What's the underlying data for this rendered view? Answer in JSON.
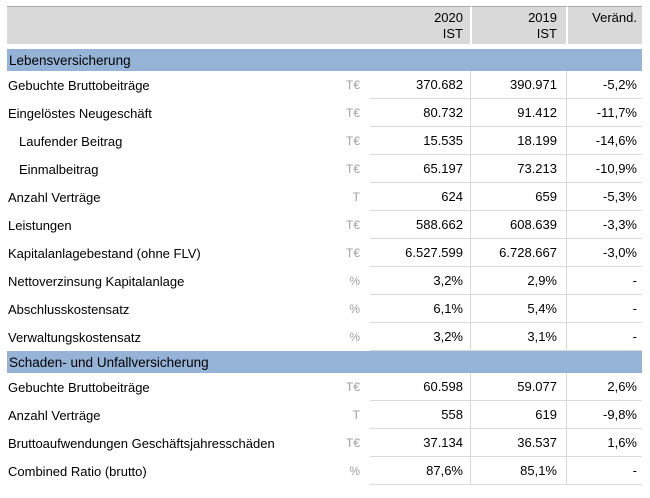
{
  "table": {
    "header": {
      "col_2020_line1": "2020",
      "col_2020_line2": "IST",
      "col_2019_line1": "2019",
      "col_2019_line2": "IST",
      "col_change": "Veränd."
    },
    "sections": [
      {
        "title": "Lebensversicherung",
        "rows": [
          {
            "label": "Gebuchte Bruttobeiträge",
            "unit": "T€",
            "v2020": "370.682",
            "v2019": "390.971",
            "change": "-5,2%"
          },
          {
            "label": "Eingelöstes Neugeschäft",
            "unit": "T€",
            "v2020": "80.732",
            "v2019": "91.412",
            "change": "-11,7%"
          },
          {
            "label": "Laufender Beitrag",
            "unit": "T€",
            "v2020": "15.535",
            "v2019": "18.199",
            "change": "-14,6%"
          },
          {
            "label": "Einmalbeitrag",
            "unit": "T€",
            "v2020": "65.197",
            "v2019": "73.213",
            "change": "-10,9%"
          },
          {
            "label": "Anzahl Verträge",
            "unit": "T",
            "v2020": "624",
            "v2019": "659",
            "change": "-5,3%"
          },
          {
            "label": "Leistungen",
            "unit": "T€",
            "v2020": "588.662",
            "v2019": "608.639",
            "change": "-3,3%"
          },
          {
            "label": "Kapitalanlagebestand (ohne FLV)",
            "unit": "T€",
            "v2020": "6.527.599",
            "v2019": "6.728.667",
            "change": "-3,0%"
          },
          {
            "label": "Nettoverzinsung Kapitalanlage",
            "unit": "%",
            "v2020": "3,2%",
            "v2019": "2,9%",
            "change": "-"
          },
          {
            "label": "Abschlusskostensatz",
            "unit": "%",
            "v2020": "6,1%",
            "v2019": "5,4%",
            "change": "-"
          },
          {
            "label": "Verwaltungskostensatz",
            "unit": "%",
            "v2020": "3,2%",
            "v2019": "3,1%",
            "change": "-"
          }
        ]
      },
      {
        "title": "Schaden- und Unfallversicherung",
        "rows": [
          {
            "label": "Gebuchte Bruttobeiträge",
            "unit": "T€",
            "v2020": "60.598",
            "v2019": "59.077",
            "change": "2,6%"
          },
          {
            "label": "Anzahl Verträge",
            "unit": "T",
            "v2020": "558",
            "v2019": "619",
            "change": "-9,8%"
          },
          {
            "label": "Bruttoaufwendungen Geschäftsjahresschäden",
            "unit": "T€",
            "v2020": "37.134",
            "v2019": "36.537",
            "change": "1,6%"
          },
          {
            "label": "Combined Ratio (brutto)",
            "unit": "%",
            "v2020": "87,6%",
            "v2019": "85,1%",
            "change": "-"
          }
        ]
      }
    ],
    "colors": {
      "header_bg": "#D9D9D9",
      "section_band_bg": "#95B3D7",
      "grid_line": "#D9D9D9",
      "top_border": "#ABABAB",
      "unit_text": "#A0A0A0"
    }
  }
}
